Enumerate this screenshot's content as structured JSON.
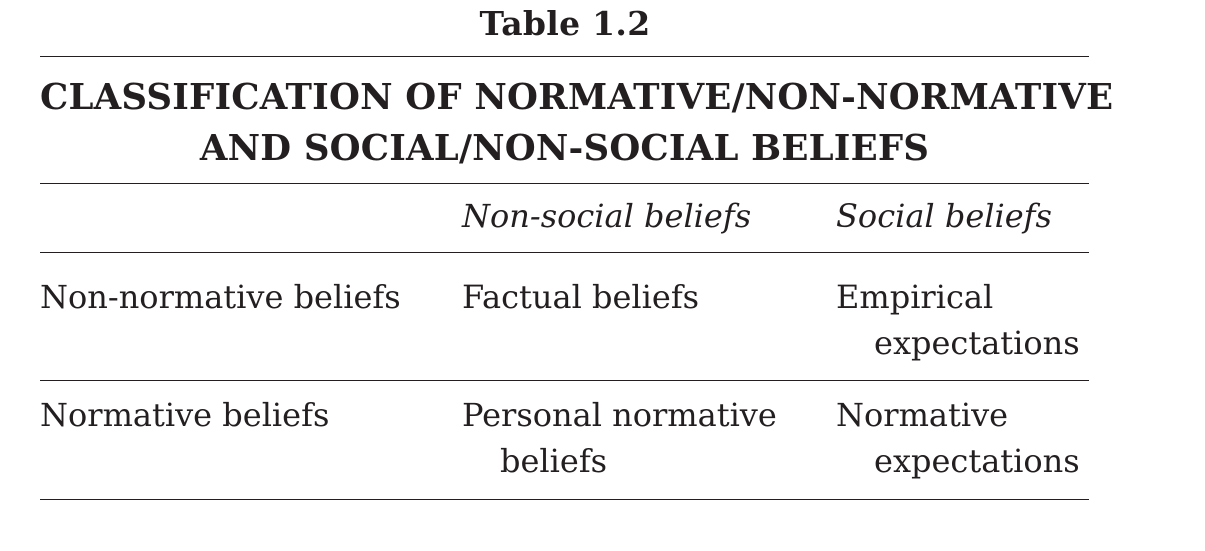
{
  "table": {
    "label": "Table 1.2",
    "heading_line1": "CLASSIFICATION OF NORMATIVE/NON-NORMATIVE",
    "heading_line2": "AND SOCIAL/NON-SOCIAL BELIEFS",
    "columns": [
      "",
      "Non-social beliefs",
      "Social beliefs"
    ],
    "rows": [
      {
        "label": "Non-normative beliefs",
        "non_social": [
          "Factual beliefs"
        ],
        "social": [
          "Empirical",
          "expectations"
        ]
      },
      {
        "label": "Normative beliefs",
        "non_social": [
          "Personal normative",
          "beliefs"
        ],
        "social": [
          "Normative",
          "expectations"
        ]
      }
    ]
  }
}
